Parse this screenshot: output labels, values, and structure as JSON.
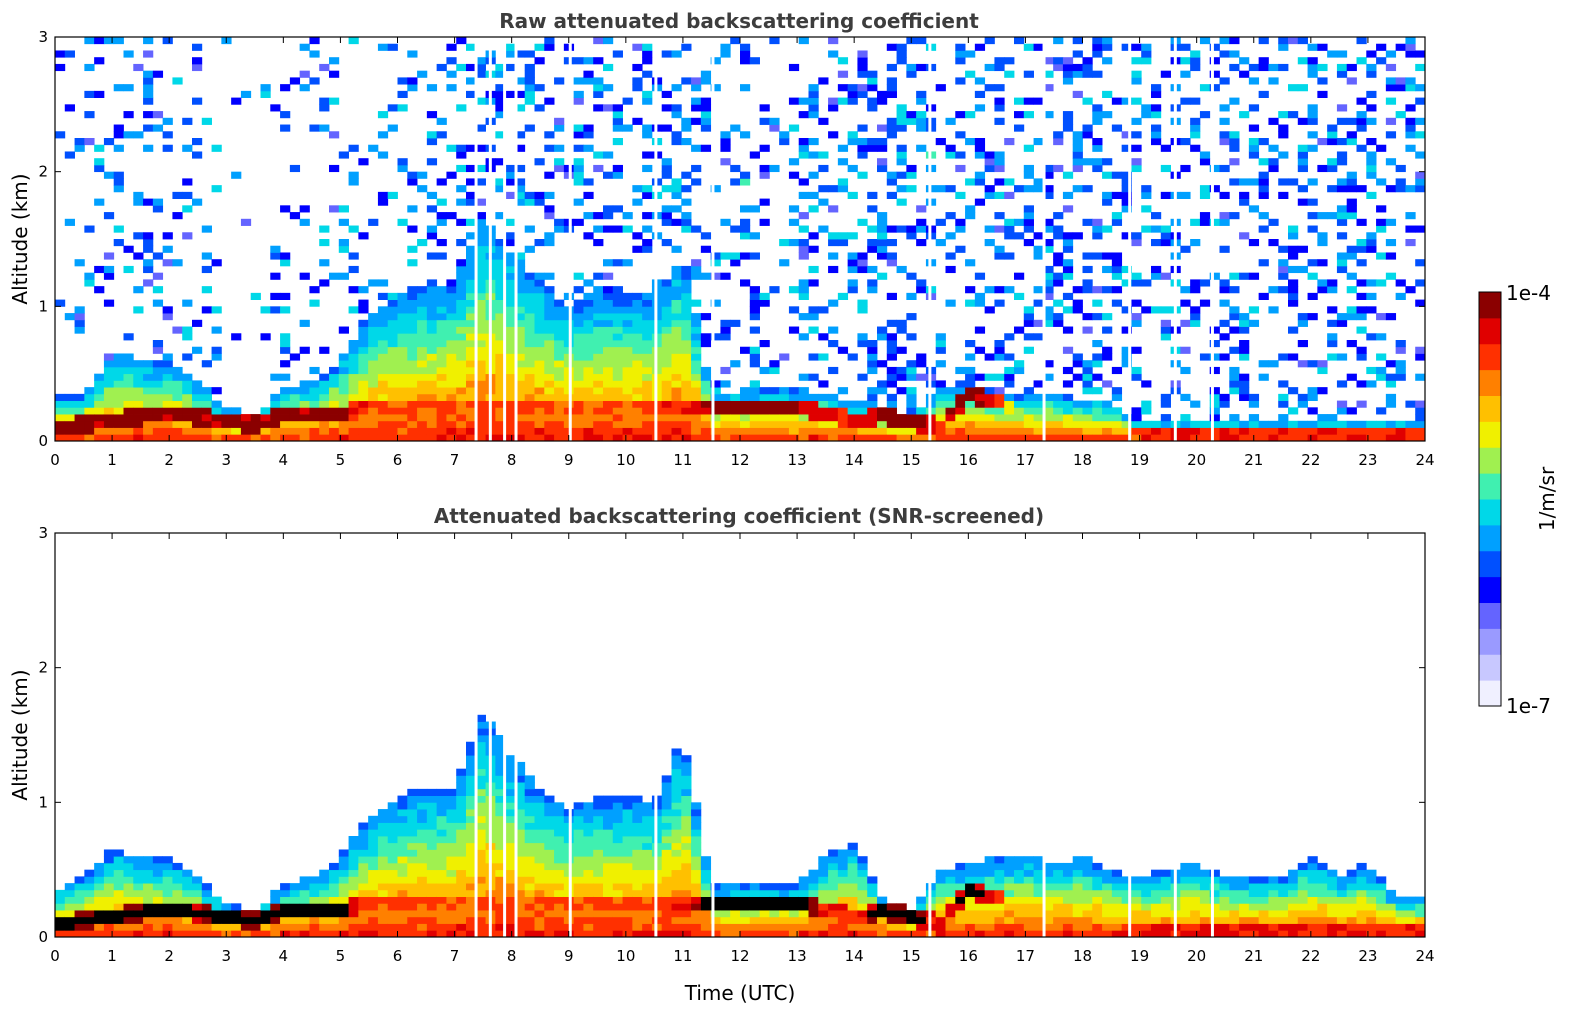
{
  "chart_data": [
    {
      "type": "heatmap",
      "title": "Raw attenuated backscattering coefficient",
      "xlabel": "",
      "ylabel": "Altitude (km)",
      "xlim": [
        0,
        24
      ],
      "ylim": [
        0,
        3
      ],
      "x_ticks": [
        "0",
        "1",
        "2",
        "3",
        "4",
        "5",
        "6",
        "7",
        "8",
        "9",
        "10",
        "11",
        "12",
        "13",
        "14",
        "15",
        "16",
        "17",
        "18",
        "19",
        "20",
        "21",
        "22",
        "23",
        "24"
      ],
      "y_ticks": [
        "0",
        "1",
        "2",
        "3"
      ],
      "profile": {
        "hours": [
          0,
          0.5,
          1,
          1.5,
          2,
          2.5,
          3,
          3.5,
          4,
          4.5,
          5,
          5.5,
          6,
          6.5,
          7,
          7.5,
          8,
          8.5,
          9,
          9.5,
          10,
          10.5,
          11,
          11.5,
          12,
          12.5,
          13,
          13.5,
          14,
          14.5,
          15,
          15.5,
          16,
          16.5,
          17,
          17.5,
          18,
          18.5,
          19,
          19.5,
          20,
          20.5,
          21,
          21.5,
          22,
          22.5,
          23,
          23.5
        ],
        "aerosol_top_km": [
          0.35,
          0.35,
          0.65,
          0.6,
          0.6,
          0.45,
          0.25,
          0.2,
          0.4,
          0.45,
          0.6,
          0.95,
          1.1,
          1.15,
          1.15,
          1.7,
          1.4,
          1.2,
          1.0,
          1.1,
          1.1,
          1.05,
          1.4,
          0.35,
          0.38,
          0.38,
          0.38,
          0.35,
          0.3,
          0.25,
          0.2,
          0.4,
          0.45,
          0.35,
          0.35,
          0.35,
          0.3,
          0.3,
          0.15,
          0.15,
          0.15,
          0.15,
          0.15,
          0.15,
          0.15,
          0.15,
          0.15,
          0.15
        ],
        "layer_km": [
          0.1,
          0.12,
          0.15,
          0.18,
          0.2,
          0.18,
          0.15,
          0.12,
          0.2,
          0.2,
          0.2,
          0.25,
          0.25,
          0.25,
          0.25,
          0.25,
          0.25,
          0.25,
          0.25,
          0.25,
          0.25,
          0.25,
          0.25,
          0.25,
          0.25,
          0.25,
          0.25,
          0.2,
          0.15,
          0.2,
          0.15,
          0.1,
          0.35,
          0.3,
          0.15,
          0.15,
          0.1,
          0.05,
          0.05,
          0.05,
          0.05,
          0.05,
          0.05,
          0.05,
          0.05,
          0.05,
          0.05,
          0.05
        ],
        "layer_strength": [
          1.0,
          1.0,
          1.0,
          1.0,
          1.0,
          1.0,
          1.0,
          1.0,
          1.0,
          1.0,
          1.0,
          0.85,
          0.85,
          0.85,
          0.85,
          0.85,
          0.85,
          0.85,
          0.85,
          0.85,
          0.85,
          0.85,
          0.9,
          1.0,
          1.0,
          1.0,
          1.0,
          0.9,
          0.9,
          1.0,
          1.0,
          0.9,
          1.0,
          0.9,
          0.4,
          0.4,
          0.4,
          0.5,
          0.9,
          0.9,
          0.9,
          0.9,
          0.9,
          0.9,
          0.9,
          0.9,
          0.9,
          0.9
        ],
        "noise_fraction": [
          0.3,
          0.3,
          0.4,
          0.4,
          0.4,
          0.3,
          0.1,
          0.05,
          0.3,
          0.3,
          0.3,
          0.3,
          0.3,
          0.35,
          0.45,
          0.6,
          0.6,
          0.55,
          0.55,
          0.55,
          0.55,
          0.6,
          0.7,
          0.4,
          0.4,
          0.4,
          0.45,
          0.45,
          0.55,
          0.7,
          0.65,
          0.6,
          0.6,
          0.65,
          0.65,
          0.65,
          0.65,
          0.65,
          0.6,
          0.6,
          0.6,
          0.6,
          0.6,
          0.6,
          0.6,
          0.6,
          0.6,
          0.6
        ]
      }
    },
    {
      "type": "heatmap",
      "title": "Attenuated backscattering coefficient (SNR-screened)",
      "xlabel": "Time (UTC)",
      "ylabel": "Altitude (km)",
      "xlim": [
        0,
        24
      ],
      "ylim": [
        0,
        3
      ],
      "x_ticks": [
        "0",
        "1",
        "2",
        "3",
        "4",
        "5",
        "6",
        "7",
        "8",
        "9",
        "10",
        "11",
        "12",
        "13",
        "14",
        "15",
        "16",
        "17",
        "18",
        "19",
        "20",
        "21",
        "22",
        "23",
        "24"
      ],
      "y_ticks": [
        "0",
        "1",
        "2",
        "3"
      ],
      "profile": {
        "hours": [
          0,
          0.5,
          1,
          1.5,
          2,
          2.5,
          3,
          3.5,
          4,
          4.5,
          5,
          5.5,
          6,
          6.5,
          7,
          7.5,
          8,
          8.5,
          9,
          9.5,
          10,
          10.5,
          11,
          11.5,
          12,
          12.5,
          13,
          13.5,
          14,
          14.5,
          15,
          15.5,
          16,
          16.5,
          17,
          17.5,
          18,
          18.5,
          19,
          19.5,
          20,
          20.5,
          21,
          21.5,
          22,
          22.5,
          23,
          23.5
        ],
        "aerosol_top_km": [
          0.35,
          0.45,
          0.65,
          0.6,
          0.6,
          0.45,
          0.25,
          0.2,
          0.4,
          0.45,
          0.6,
          0.9,
          1.05,
          1.1,
          1.1,
          1.7,
          1.35,
          1.1,
          0.95,
          1.05,
          1.05,
          1.0,
          1.5,
          0.38,
          0.38,
          0.38,
          0.38,
          0.6,
          0.7,
          0.3,
          0.2,
          0.5,
          0.55,
          0.6,
          0.6,
          0.55,
          0.6,
          0.5,
          0.45,
          0.5,
          0.55,
          0.45,
          0.45,
          0.45,
          0.6,
          0.45,
          0.55,
          0.3
        ],
        "layer_km": [
          0.1,
          0.12,
          0.15,
          0.18,
          0.2,
          0.18,
          0.15,
          0.12,
          0.2,
          0.2,
          0.2,
          0.25,
          0.25,
          0.25,
          0.25,
          0.25,
          0.25,
          0.25,
          0.25,
          0.25,
          0.25,
          0.25,
          0.25,
          0.25,
          0.25,
          0.25,
          0.25,
          0.2,
          0.15,
          0.2,
          0.15,
          0.1,
          0.35,
          0.3,
          0.15,
          0.15,
          0.1,
          0.05,
          0.05,
          0.05,
          0.05,
          0.05,
          0.05,
          0.05,
          0.05,
          0.05,
          0.05,
          0.05
        ],
        "layer_strength": [
          1.0,
          1.0,
          1.0,
          1.0,
          1.0,
          1.0,
          1.0,
          1.0,
          1.0,
          1.0,
          1.0,
          0.85,
          0.85,
          0.85,
          0.85,
          0.85,
          0.85,
          0.85,
          0.85,
          0.85,
          0.85,
          0.85,
          0.9,
          1.0,
          1.0,
          1.0,
          1.0,
          0.9,
          0.9,
          1.0,
          1.0,
          0.9,
          1.0,
          0.9,
          0.4,
          0.4,
          0.4,
          0.5,
          0.9,
          0.9,
          0.9,
          0.9,
          0.9,
          0.9,
          0.9,
          0.9,
          0.9,
          0.9
        ],
        "noise_fraction": [
          0,
          0,
          0,
          0,
          0,
          0,
          0,
          0,
          0,
          0,
          0,
          0,
          0,
          0,
          0,
          0,
          0,
          0,
          0,
          0,
          0,
          0,
          0,
          0,
          0,
          0,
          0,
          0,
          0,
          0,
          0,
          0,
          0,
          0,
          0,
          0,
          0,
          0,
          0,
          0,
          0,
          0,
          0,
          0,
          0,
          0,
          0,
          0
        ]
      }
    }
  ],
  "colorbar": {
    "label": "1/m/sr",
    "max_label": "1e-4",
    "min_label": "1e-7",
    "scale": "log",
    "range": [
      1e-07,
      0.0001
    ],
    "colors": [
      "#f0f0ff",
      "#c8c8ff",
      "#9a9aff",
      "#6464ff",
      "#0000ff",
      "#0050ff",
      "#00a0ff",
      "#00d8e8",
      "#40f0b0",
      "#a0f050",
      "#f0f000",
      "#ffc000",
      "#ff8000",
      "#ff3000",
      "#e00000",
      "#8b0000"
    ]
  }
}
